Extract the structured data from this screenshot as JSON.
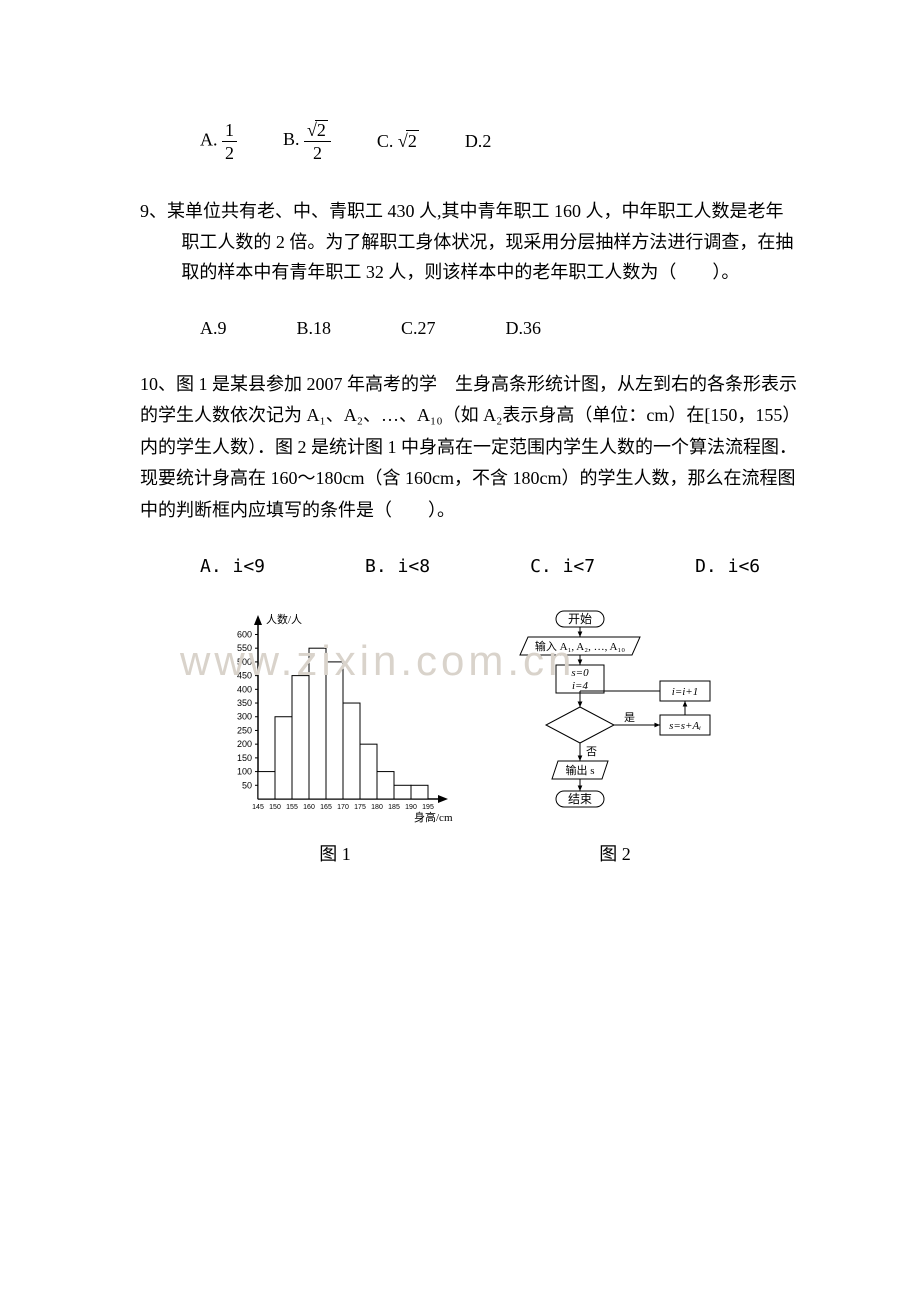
{
  "q8": {
    "options": {
      "A": {
        "label": "A.",
        "num": "1",
        "den": "2"
      },
      "B": {
        "label": "B.",
        "num_rad": "2",
        "den": "2"
      },
      "C": {
        "label": "C.",
        "rad": "2"
      },
      "D": {
        "label": "D.",
        "plain": "2"
      }
    }
  },
  "q9": {
    "text": "9、某单位共有老、中、青职工 430 人,其中青年职工 160 人，中年职工人数是老年职工人数的 2 倍。为了解职工身体状况，现采用分层抽样方法进行调查，在抽取的样本中有青年职工 32 人，则该样本中的老年职工人数为（　　）。",
    "options": {
      "A": "A.9",
      "B": "B.18",
      "C": "C.27",
      "D": "D.36"
    }
  },
  "q10": {
    "text": "10、图 1 是某县参加 2007 年高考的学　生身高条形统计图，从左到右的各条形表示的学生人数依次记为 A₁、A₂、…、A₁₀（如 A₂表示身高（单位：cm）在[150，155）内的学生人数）．图 2 是统计图 1 中身高在一定范围内学生人数的一个算法流程图．现要统计身高在 160～180cm（含 160cm，不含 180cm）的学生人数，那么在流程图中的判断框内应填写的条件是（　　）。",
    "options": {
      "A": "A. i<9",
      "B": "B. i<8",
      "C": "C. i<7",
      "D": "D. i<6"
    }
  },
  "fig1": {
    "type": "bar",
    "title": "图 1",
    "x_label": "身高/cm",
    "y_label": "人数/人",
    "x_ticks": [
      "145",
      "150",
      "155",
      "160",
      "165",
      "170",
      "175",
      "180",
      "185",
      "190",
      "195"
    ],
    "y_ticks": [
      50,
      100,
      150,
      200,
      250,
      300,
      350,
      400,
      450,
      500,
      550,
      600
    ],
    "ylim": [
      0,
      620
    ],
    "bars": [
      {
        "x": "145-150",
        "value": 100
      },
      {
        "x": "150-155",
        "value": 300
      },
      {
        "x": "155-160",
        "value": 450
      },
      {
        "x": "160-165",
        "value": 550
      },
      {
        "x": "165-170",
        "value": 500
      },
      {
        "x": "170-175",
        "value": 350
      },
      {
        "x": "175-180",
        "value": 200
      },
      {
        "x": "180-185",
        "value": 100
      },
      {
        "x": "185-190",
        "value": 50
      },
      {
        "x": "190-195",
        "value": 50
      }
    ],
    "bar_color": "#ffffff",
    "bar_border": "#000000",
    "axis_color": "#000000",
    "label_fontsize": 11,
    "tick_fontsize": 7
  },
  "fig2": {
    "type": "flowchart",
    "title": "图 2",
    "border_color": "#000000",
    "bg_color": "#ffffff",
    "font_size": 12,
    "nodes": {
      "start": {
        "shape": "rounded",
        "text": "开始"
      },
      "input": {
        "shape": "parallelogram",
        "text": "输入 A₁, A₂, …, A₁₀"
      },
      "init": {
        "shape": "rect",
        "text": "s=0\ni=4"
      },
      "cond": {
        "shape": "diamond",
        "text": ""
      },
      "yes": {
        "label": "是"
      },
      "no": {
        "label": "否"
      },
      "accum": {
        "shape": "rect",
        "text": "s=s+Aᵢ"
      },
      "incr": {
        "shape": "rect",
        "text": "i=i+1"
      },
      "output": {
        "shape": "parallelogram",
        "text": "输出 s"
      },
      "end": {
        "shape": "rounded",
        "text": "结束"
      }
    },
    "edges": [
      [
        "start",
        "input"
      ],
      [
        "input",
        "init"
      ],
      [
        "init",
        "cond"
      ],
      [
        "cond",
        "accum",
        "是"
      ],
      [
        "accum",
        "incr"
      ],
      [
        "incr",
        "cond"
      ],
      [
        "cond",
        "output",
        "否"
      ],
      [
        "output",
        "end"
      ]
    ]
  },
  "watermark": "www.zixin.com.cn"
}
